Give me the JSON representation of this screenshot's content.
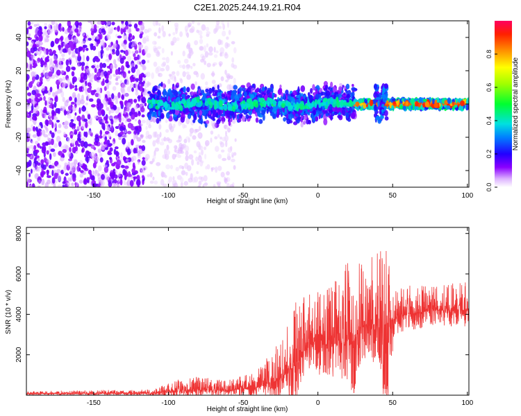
{
  "title": "C2E1.2025.244.19.21.R04",
  "chart_data": [
    {
      "type": "heatmap",
      "xlabel": "Height of straight line (km)",
      "ylabel": "Frequency (Hz)",
      "xlim": [
        -195,
        101
      ],
      "ylim": [
        -50,
        50
      ],
      "xticks": [
        -150,
        -100,
        -50,
        0,
        50,
        100
      ],
      "yticks": [
        -40,
        -20,
        0,
        20,
        40
      ],
      "colorbar": {
        "label": "Normalized spectral amplitude",
        "range": [
          0,
          1
        ],
        "ticks": [
          0.0,
          0.2,
          0.4,
          0.6,
          0.8
        ]
      },
      "regions": [
        {
          "x_range": [
            -195,
            -115
          ],
          "description_value": "broadband low amplitude noise"
        },
        {
          "x_range": [
            -115,
            25
          ],
          "center_freq": 0,
          "spread": 10,
          "amplitude": [
            0.1,
            0.4
          ]
        },
        {
          "x_range": [
            25,
            100
          ],
          "center_freq": 0,
          "spread": 3,
          "amplitude": [
            0.6,
            0.95
          ]
        }
      ]
    },
    {
      "type": "line",
      "xlabel": "Height of straight line (km)",
      "ylabel": "SNR (10 * v/v)",
      "xlim": [
        -195,
        101
      ],
      "ylim": [
        0,
        8300
      ],
      "xticks": [
        -150,
        -100,
        -50,
        0,
        50,
        100
      ],
      "yticks": [
        2000,
        4000,
        6000,
        8000
      ],
      "color": "#ee3333",
      "envelope": [
        {
          "x": -195,
          "base": 80,
          "amp": 120
        },
        {
          "x": -110,
          "base": 100,
          "amp": 200
        },
        {
          "x": -100,
          "base": 180,
          "amp": 400
        },
        {
          "x": -85,
          "base": 250,
          "amp": 700
        },
        {
          "x": -60,
          "base": 250,
          "amp": 500
        },
        {
          "x": -40,
          "base": 400,
          "amp": 900
        },
        {
          "x": -25,
          "base": 800,
          "amp": 2000
        },
        {
          "x": -15,
          "base": 1500,
          "amp": 3500
        },
        {
          "x": -5,
          "base": 2500,
          "amp": 2500
        },
        {
          "x": 10,
          "base": 2500,
          "amp": 3000
        },
        {
          "x": 20,
          "base": 2800,
          "amp": 4000
        },
        {
          "x": 30,
          "base": 3500,
          "amp": 3000
        },
        {
          "x": 45,
          "base": 3500,
          "amp": 4000
        },
        {
          "x": 55,
          "base": 4000,
          "amp": 1500
        },
        {
          "x": 80,
          "base": 4200,
          "amp": 1200
        },
        {
          "x": 100,
          "base": 4200,
          "amp": 1500
        }
      ]
    }
  ]
}
